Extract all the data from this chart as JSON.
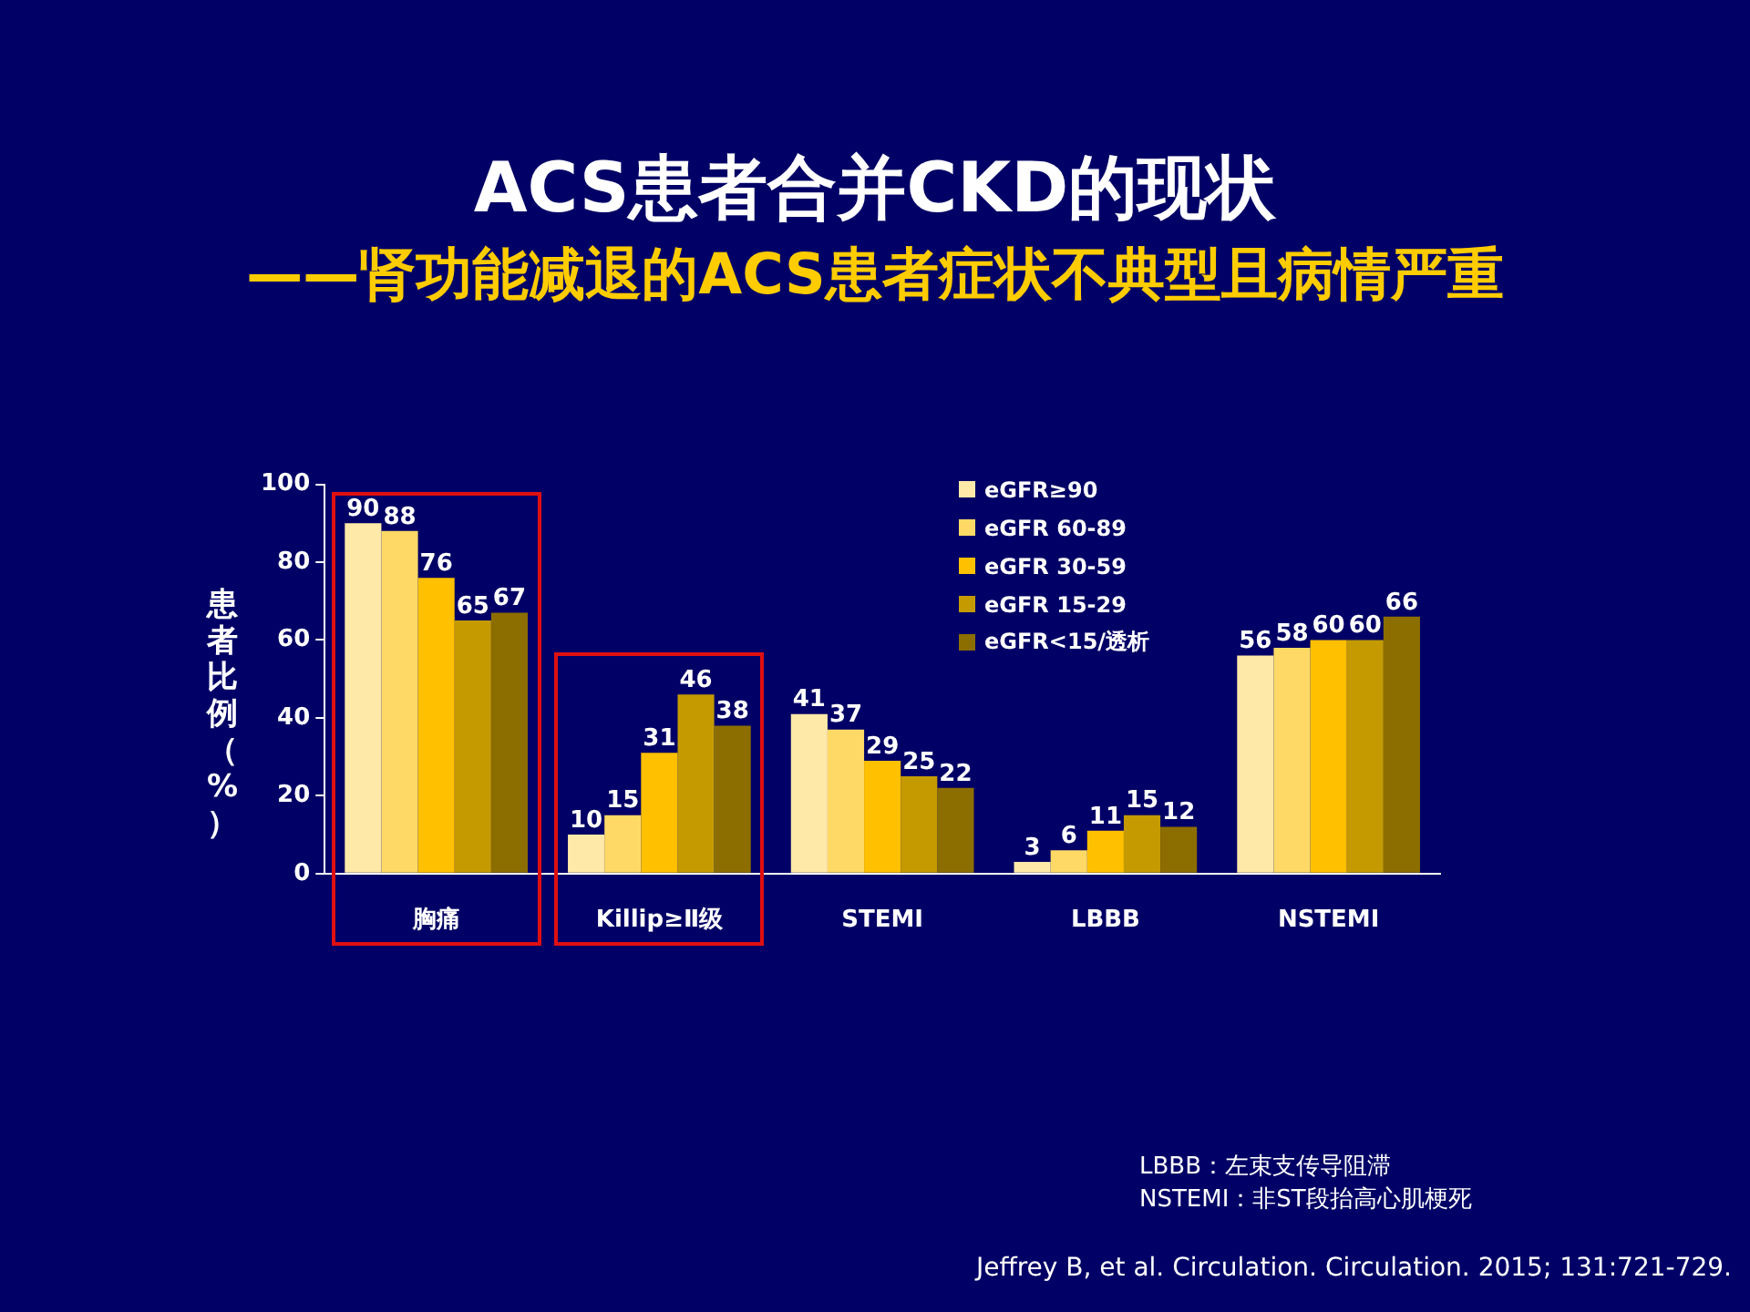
{
  "chart_data": {
    "type": "bar",
    "title": "ACS患者合并CKD的现状",
    "subtitle": "——肾功能减退的ACS患者症状不典型且病情严重",
    "ylabel": "患者比例（%）",
    "categories": [
      "胸痛",
      "Killip≥Ⅱ级",
      "STEMI",
      "LBBB",
      "NSTEMI"
    ],
    "series": [
      {
        "name": "eGFR≥90",
        "color": "#ffe9a8",
        "values": [
          90,
          10,
          41,
          3,
          56
        ]
      },
      {
        "name": "eGFR 60-89",
        "color": "#ffd966",
        "values": [
          88,
          15,
          37,
          6,
          58
        ]
      },
      {
        "name": "eGFR 30-59",
        "color": "#ffc000",
        "values": [
          76,
          31,
          29,
          11,
          60
        ]
      },
      {
        "name": "eGFR 15-29",
        "color": "#c49a00",
        "values": [
          65,
          46,
          25,
          15,
          60
        ]
      },
      {
        "name": "eGFR<15/透析",
        "color": "#8c6d00",
        "values": [
          67,
          38,
          22,
          12,
          66
        ]
      }
    ],
    "ylim": [
      0,
      100
    ],
    "yticks": [
      0,
      20,
      40,
      60,
      80,
      100
    ],
    "grid": false,
    "legend": "top right",
    "data_labels": true,
    "annotations": [
      "LBBB：左束支传导阻滞",
      "NSTEMI：非ST段抬高心肌梗死",
      "Jeffrey B, et al. Circulation. Circulation. 2015; 131:721-729."
    ]
  }
}
